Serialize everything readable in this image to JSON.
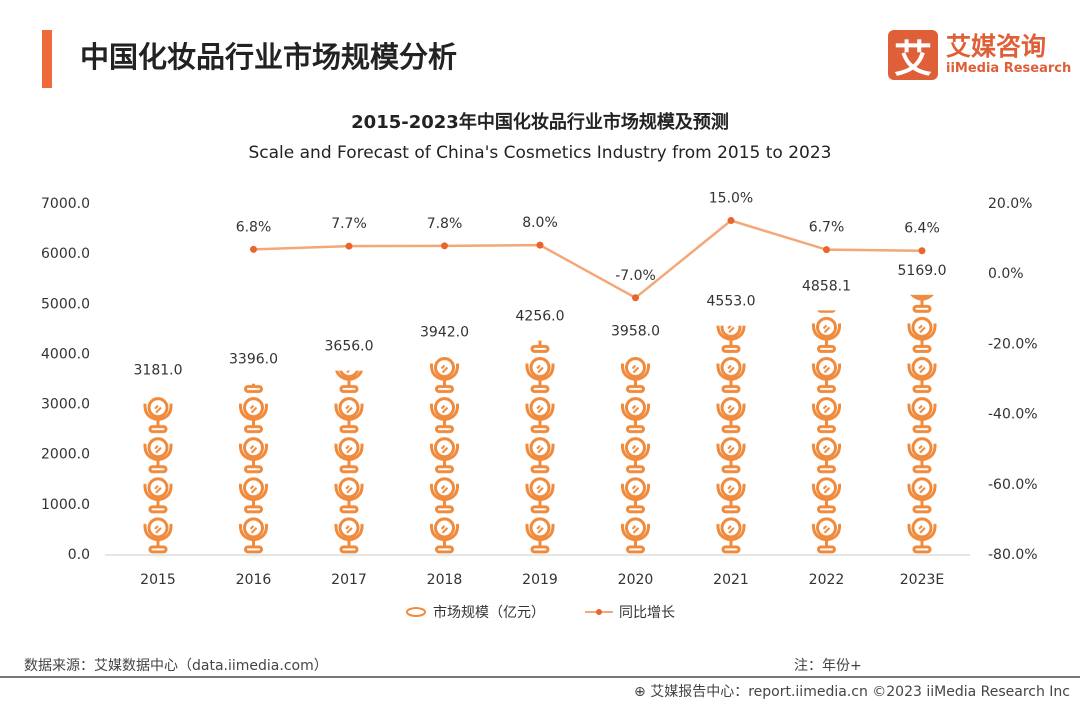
{
  "header": {
    "title": "中国化妆品行业市场规模分析",
    "logo_icon": "艾",
    "logo_cn": "艾媒咨询",
    "logo_en": "iiMedia Research"
  },
  "colors": {
    "accent": "#ef6a3a",
    "bar": "#f08a3c",
    "line": "#f4a878",
    "point": "#e8662e"
  },
  "chart_data": {
    "type": "bar+line",
    "title": "2015-2023年中国化妆品行业市场规模及预测",
    "subtitle": "Scale and Forecast of China's Cosmetics Industry from 2015 to 2023",
    "categories": [
      "2015",
      "2016",
      "2017",
      "2018",
      "2019",
      "2020",
      "2021",
      "2022",
      "2023E"
    ],
    "series": [
      {
        "name": "市场规模（亿元）",
        "type": "pictogram-bar",
        "axis": "left",
        "values": [
          3181.0,
          3396.0,
          3656.0,
          3942.0,
          4256.0,
          3958.0,
          4553.0,
          4858.1,
          5169.0
        ]
      },
      {
        "name": "同比增长",
        "type": "line",
        "axis": "right",
        "values": [
          null,
          6.8,
          7.7,
          7.8,
          8.0,
          -7.0,
          15.0,
          6.7,
          6.4
        ]
      }
    ],
    "left_axis": {
      "min": 0,
      "max": 7000,
      "ticks": [
        "0.0",
        "1000.0",
        "2000.0",
        "3000.0",
        "4000.0",
        "5000.0",
        "6000.0",
        "7000.0"
      ]
    },
    "right_axis": {
      "min": -80,
      "max": 20,
      "unit": "%",
      "ticks": [
        "-80.0%",
        "-60.0%",
        "-40.0%",
        "-20.0%",
        "0.0%",
        "20.0%"
      ]
    },
    "legend_placement": "bottom",
    "grid": false
  },
  "footer": {
    "source": "数据来源：艾媒数据中心（data.iimedia.com）",
    "note": "注：年份+",
    "report": "艾媒报告中心：report.iimedia.cn  ©2023  iiMedia Research Inc"
  }
}
